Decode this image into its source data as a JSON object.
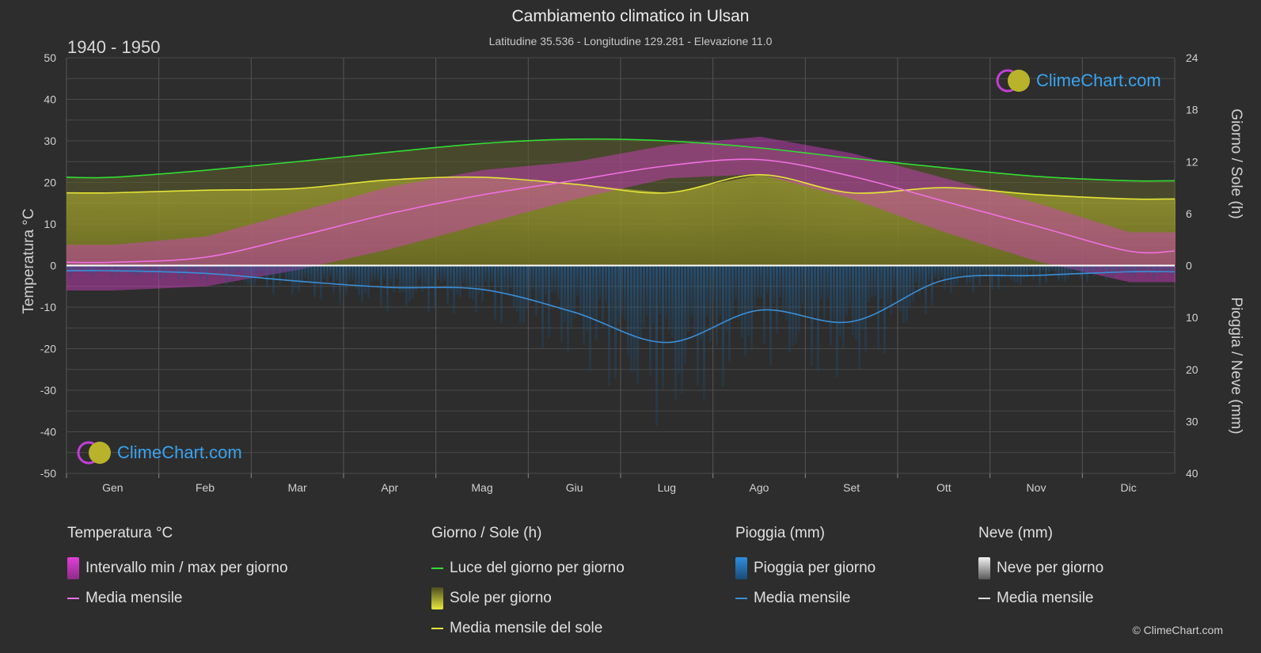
{
  "header": {
    "title": "Cambiamento climatico in Ulsan",
    "subtitle": "Latitudine 35.536 - Longitudine 129.281 - Elevazione 11.0",
    "period": "1940 - 1950"
  },
  "axes": {
    "left_title": "Temperatura °C",
    "right_top_title": "Giorno / Sole (h)",
    "right_bottom_title": "Pioggia / Neve (mm)"
  },
  "chart_data": {
    "type": "area",
    "months": [
      "Gen",
      "Feb",
      "Mar",
      "Apr",
      "Mag",
      "Giu",
      "Lug",
      "Ago",
      "Set",
      "Ott",
      "Nov",
      "Dic"
    ],
    "temp_axis": {
      "ticks": [
        50,
        40,
        30,
        20,
        10,
        0,
        -10,
        -20,
        -30,
        -40,
        -50
      ],
      "range": [
        -50,
        50
      ]
    },
    "sun_axis": {
      "ticks": [
        24,
        18,
        12,
        6,
        0
      ],
      "range": [
        0,
        24
      ]
    },
    "precip_axis": {
      "ticks": [
        0,
        10,
        20,
        30,
        40
      ],
      "range": [
        0,
        40
      ]
    },
    "series": [
      {
        "name": "Luce del giorno per giorno",
        "unit": "h",
        "color": "#33dd33",
        "values": [
          10.2,
          11.0,
          12.0,
          13.1,
          14.1,
          14.6,
          14.4,
          13.6,
          12.4,
          11.3,
          10.3,
          9.8
        ]
      },
      {
        "name": "Media mensile del sole",
        "unit": "h",
        "color": "#e4e43a",
        "values": [
          8.4,
          8.7,
          8.9,
          9.9,
          10.2,
          9.4,
          8.4,
          10.5,
          8.4,
          9.0,
          8.2,
          7.7
        ]
      },
      {
        "name": "Media mensile",
        "kind": "temperature",
        "unit": "°C",
        "color": "#f070e0",
        "values": [
          0.8,
          2.0,
          7.0,
          12.5,
          17.0,
          20.5,
          24.0,
          25.5,
          21.5,
          15.5,
          9.5,
          3.5
        ]
      },
      {
        "name": "Media mensile",
        "kind": "rain",
        "unit": "mm",
        "color": "#3a8fd8",
        "values": [
          1.0,
          1.5,
          3.0,
          4.2,
          4.6,
          9.0,
          14.8,
          8.6,
          10.8,
          2.8,
          1.9,
          1.2
        ]
      },
      {
        "name": "Media mensile",
        "kind": "snow",
        "unit": "mm",
        "color": "#dddddd",
        "values": [
          0,
          0,
          0,
          0,
          0,
          0,
          0,
          0,
          0,
          0,
          0,
          0
        ]
      }
    ],
    "temp_band_min": [
      -6,
      -5,
      -1,
      4,
      10,
      16,
      21,
      22,
      16,
      8,
      1,
      -4
    ],
    "temp_band_max": [
      5,
      7,
      13,
      19,
      23,
      25,
      29,
      31,
      27,
      21,
      15,
      8
    ],
    "grid": true
  },
  "legend": {
    "temperature": {
      "title": "Temperatura °C",
      "range_label": "Intervallo min / max per giorno",
      "mean_label": "Media mensile"
    },
    "sun": {
      "title": "Giorno / Sole (h)",
      "daylight_label": "Luce del giorno per giorno",
      "sun_label": "Sole per giorno",
      "sun_mean_label": "Media mensile del sole"
    },
    "rain": {
      "title": "Pioggia (mm)",
      "rain_label": "Pioggia per giorno",
      "mean_label": "Media mensile"
    },
    "snow": {
      "title": "Neve (mm)",
      "snow_label": "Neve per giorno",
      "mean_label": "Media mensile"
    }
  },
  "brand": {
    "logo_text": "ClimeChart.com",
    "copyright": "© ClimeChart.com"
  },
  "colors": {
    "background": "#2d2d2d",
    "temp_band": "#d63fc8",
    "sun_fill": "#8f8f2a",
    "rain_fill": "#1d5f95",
    "daylight": "#33dd33",
    "zero_line": "#ffffff"
  }
}
